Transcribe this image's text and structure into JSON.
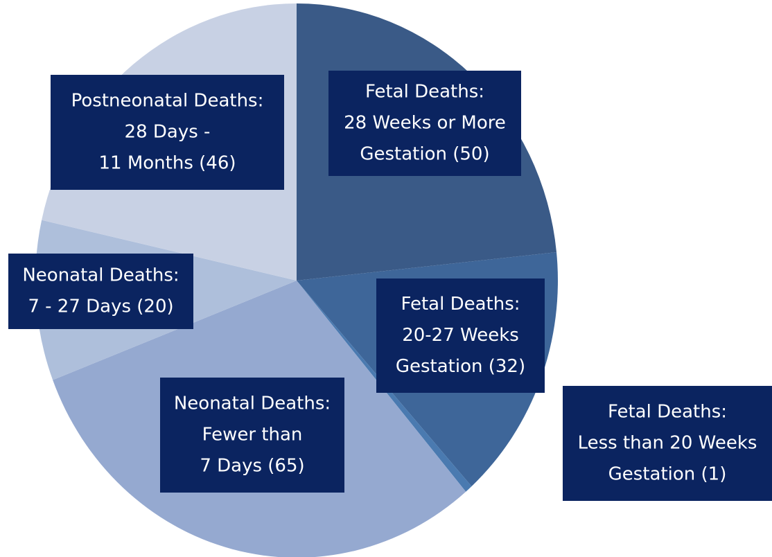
{
  "chart_data": {
    "type": "pie",
    "categories": [
      [
        "Fetal Deaths:",
        "28 Weeks  or More",
        "Gestation (50)"
      ],
      [
        "Fetal Deaths:",
        "20-27 Weeks",
        "Gestation (32)"
      ],
      [
        "Fetal Deaths:",
        "Less than 20 Weeks",
        "Gestation (1)"
      ],
      [
        "Neonatal Deaths:",
        "Fewer than",
        "7 Days (65)"
      ],
      [
        "Neonatal Deaths:",
        "7 - 27 Days (20)"
      ],
      [
        "Postneonatal Deaths:",
        "28 Days -",
        "11 Months (46)"
      ]
    ],
    "values": [
      50,
      32,
      1,
      65,
      20,
      46
    ],
    "colors": [
      "#3a5a87",
      "#3e6699",
      "#4a7ab0",
      "#95a9d0",
      "#aebfdb",
      "#c8d1e4"
    ],
    "label_color": "#0b2460"
  }
}
